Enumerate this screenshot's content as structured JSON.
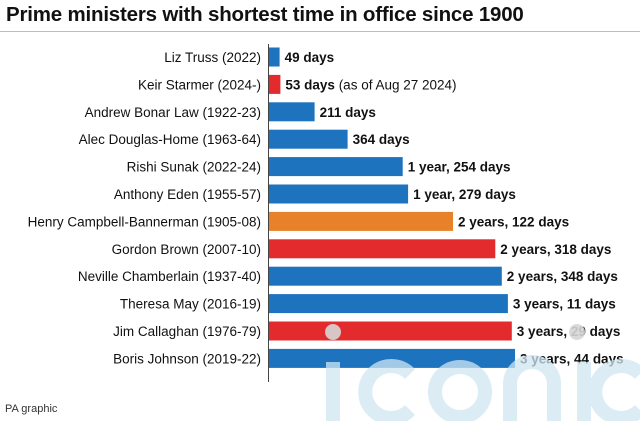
{
  "chart_data": {
    "type": "bar",
    "orientation": "horizontal",
    "title": "Prime ministers with shortest time in office since 1900",
    "categories": [
      "Liz Truss (2022)",
      "Keir Starmer (2024-)",
      "Andrew Bonar Law (1922-23)",
      "Alec Douglas-Home (1963-64)",
      "Rishi Sunak (2022-24)",
      "Anthony Eden (1955-57)",
      "Henry Campbell-Bannerman (1905-08)",
      "Gordon Brown (2007-10)",
      "Neville Chamberlain (1937-40)",
      "Theresa May (2016-19)",
      "Jim Callaghan (1976-79)",
      "Boris Johnson (2019-22)"
    ],
    "values": [
      49,
      53,
      211,
      364,
      619,
      644,
      852,
      1048,
      1078,
      1106,
      1124,
      1139
    ],
    "value_labels": [
      "49 days",
      "53 days",
      "211 days",
      "364 days",
      "1 year, 254 days",
      "1 year, 279 days",
      "2 years, 122 days",
      "2 years, 318 days",
      "2 years, 348 days",
      "3 years, 11 days",
      "3 years, 29 days",
      "3 years, 44 days"
    ],
    "annotations": [
      "",
      "(as of Aug 27 2024)",
      "",
      "",
      "",
      "",
      "",
      "",
      "",
      "",
      "",
      ""
    ],
    "bar_colors": [
      "#1e73be",
      "#e32b2d",
      "#1e73be",
      "#1e73be",
      "#1e73be",
      "#1e73be",
      "#e8822a",
      "#e32b2d",
      "#1e73be",
      "#1e73be",
      "#e32b2d",
      "#1e73be"
    ],
    "xlim": [
      0,
      1139
    ],
    "grid": false,
    "legend": "none"
  },
  "source": "PA graphic",
  "watermark": "iconic"
}
